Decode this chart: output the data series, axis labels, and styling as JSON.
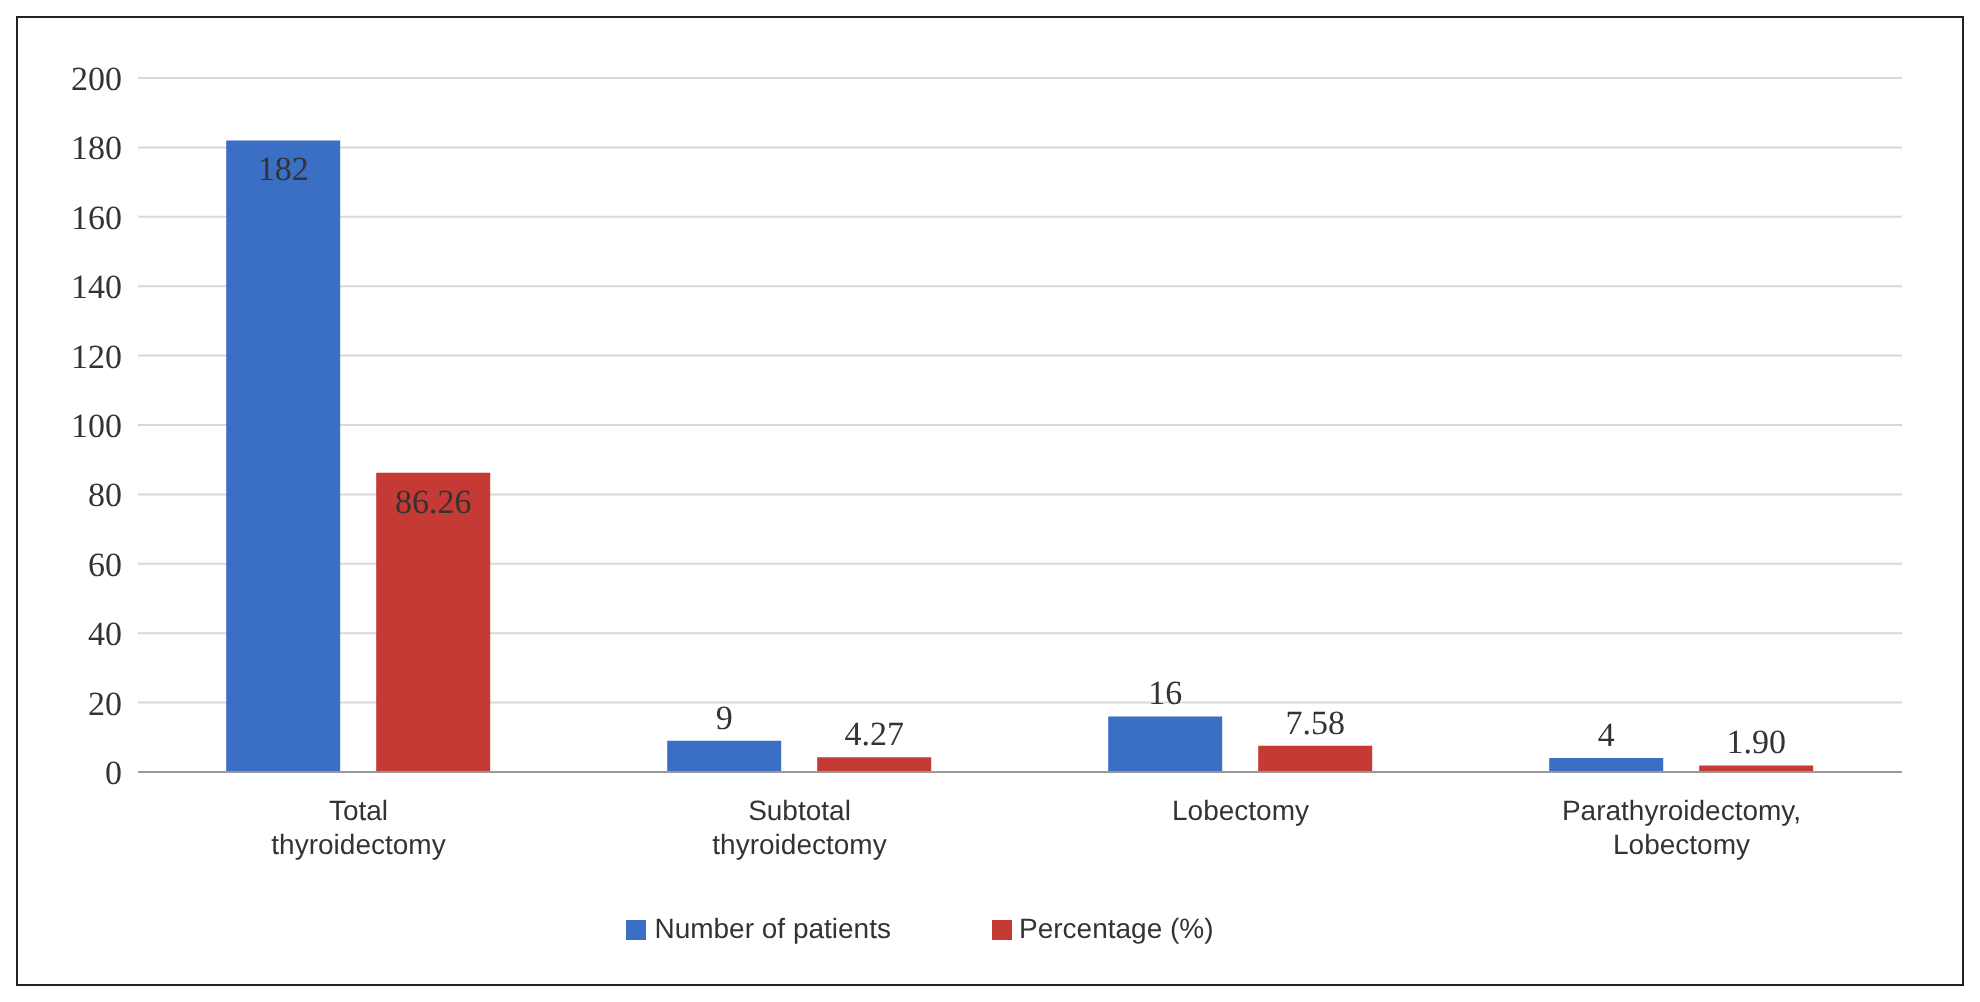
{
  "chart_data": {
    "type": "bar",
    "categories": [
      "Total thyroidectomy",
      "Subtotal thyroidectomy",
      "Lobectomy",
      "Parathyroidectomy, Lobectomy"
    ],
    "series": [
      {
        "name": "Number of patients",
        "color": "#3b6fc6",
        "values": [
          182,
          9,
          16,
          4
        ],
        "value_labels": [
          "182",
          "9",
          "16",
          "4"
        ]
      },
      {
        "name": "Percentage (%)",
        "color": "#c63a36",
        "values": [
          86.26,
          4.27,
          7.58,
          1.9
        ],
        "value_labels": [
          "86.26",
          "4.27",
          "7.58",
          "1.90"
        ]
      }
    ],
    "ylim": [
      0,
      200
    ],
    "yticks": [
      0,
      20,
      40,
      60,
      80,
      100,
      120,
      140,
      160,
      180,
      200
    ],
    "grid": "y",
    "legend": "bottom"
  }
}
